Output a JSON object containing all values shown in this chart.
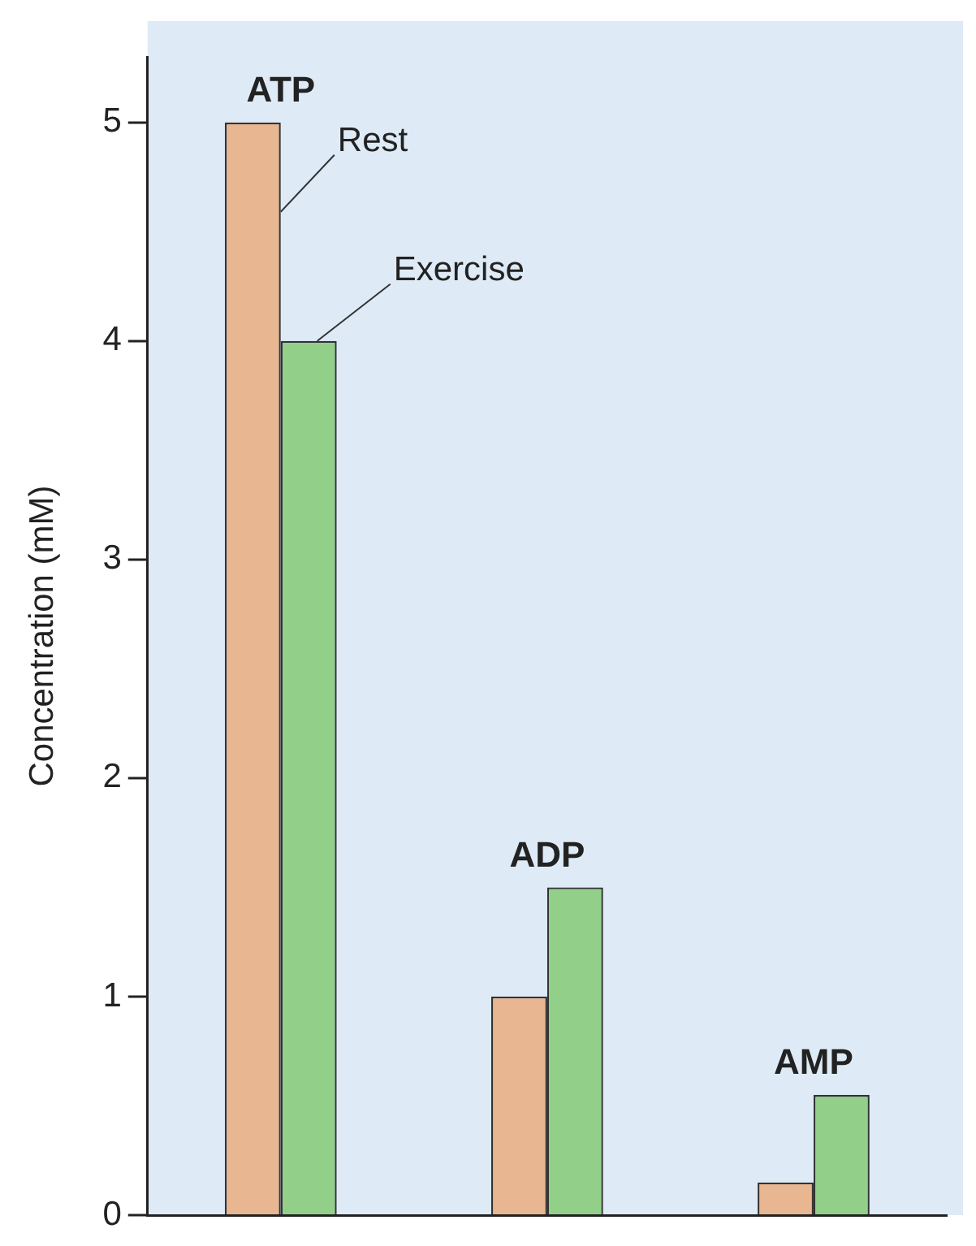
{
  "chart_data": {
    "type": "bar",
    "ylabel": "Concentration (mM)",
    "categories": [
      "ATP",
      "ADP",
      "AMP"
    ],
    "series": [
      {
        "name": "Rest",
        "color": "#e8b690",
        "values": [
          5.0,
          1.0,
          0.15
        ]
      },
      {
        "name": "Exercise",
        "color": "#92d08a",
        "values": [
          4.0,
          1.5,
          0.55
        ]
      }
    ],
    "ylim": [
      0,
      5.3
    ],
    "yticks": [
      0,
      1,
      2,
      3,
      4,
      5
    ],
    "grid": false,
    "legend": false
  }
}
